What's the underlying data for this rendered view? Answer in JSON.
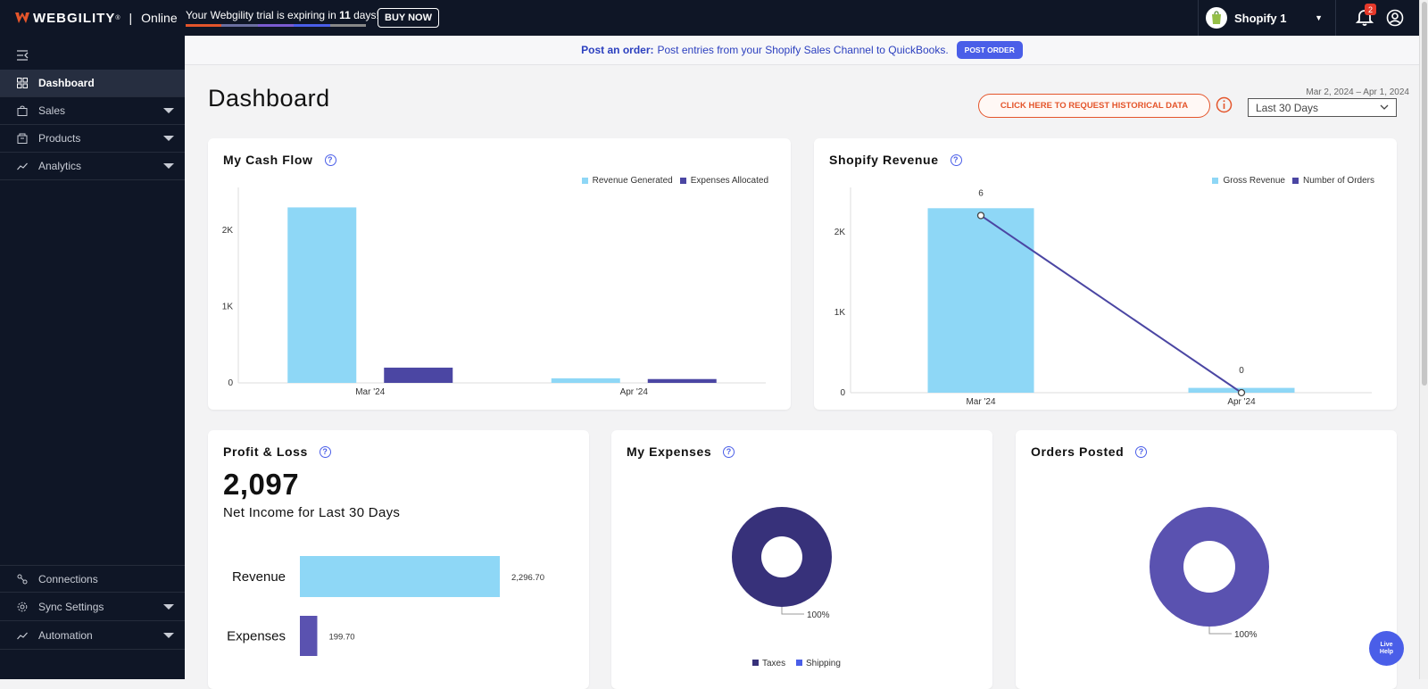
{
  "brand": {
    "name": "WEBGILITY",
    "reg": "®",
    "separator": "|",
    "edition": "Online"
  },
  "trial": {
    "text_pre": "Your Webgility trial is expiring in ",
    "days": "11",
    "text_post": " days!",
    "buy_label": "BUY NOW"
  },
  "store": {
    "name": "Shopify 1"
  },
  "notifications": {
    "count": "2"
  },
  "sidebar": {
    "items": [
      {
        "label": "Dashboard",
        "icon": "grid-icon",
        "active": true
      },
      {
        "label": "Sales",
        "icon": "bag-icon"
      },
      {
        "label": "Products",
        "icon": "box-icon"
      },
      {
        "label": "Analytics",
        "icon": "trend-icon"
      }
    ],
    "bottom": [
      {
        "label": "Connections",
        "icon": "connections-icon"
      },
      {
        "label": "Sync Settings",
        "icon": "gear-icon"
      },
      {
        "label": "Automation",
        "icon": "automation-icon"
      }
    ]
  },
  "banner": {
    "lead": "Post an order:",
    "text": "Post entries from your Shopify Sales Channel to QuickBooks.",
    "button": "POST ORDER"
  },
  "page": {
    "title": "Dashboard",
    "date_range": "Mar 2, 2024 – Apr 1, 2024",
    "historical_button": "CLICK HERE TO REQUEST HISTORICAL DATA",
    "range_select": "Last 30 Days"
  },
  "cards": {
    "cash_flow": {
      "title": "My Cash Flow",
      "help": "?"
    },
    "shopify_revenue": {
      "title": "Shopify Revenue",
      "help": "?"
    },
    "profit_loss": {
      "title": "Profit & Loss",
      "help": "?",
      "amount": "2,097",
      "subtitle": "Net Income for Last 30 Days"
    },
    "expenses": {
      "title": "My Expenses",
      "help": "?"
    },
    "orders_posted": {
      "title": "Orders Posted",
      "help": "?"
    }
  },
  "colors": {
    "light_blue": "#8ed7f6",
    "indigo": "#4b46a3",
    "dark_indigo": "#37317a",
    "purple": "#5a52b0",
    "accent_blue": "#4a5ee8",
    "orange": "#e4552b"
  },
  "chart_data": [
    {
      "type": "bar",
      "categories": [
        "Mar '24",
        "Apr '24"
      ],
      "series": [
        {
          "name": "Revenue Generated",
          "values": [
            2296.7,
            60
          ],
          "color": "#8ed7f6"
        },
        {
          "name": "Expenses Allocated",
          "values": [
            199.7,
            50
          ],
          "color": "#4b46a3"
        }
      ],
      "yticks": [
        "0",
        "1K",
        "2K"
      ],
      "ytick_values": [
        0,
        1000,
        2000
      ],
      "ylim": [
        0,
        2500
      ]
    },
    {
      "type": "bar",
      "categories": [
        "Mar '24",
        "Apr '24"
      ],
      "series": [
        {
          "name": "Gross Revenue",
          "values": [
            2296.7,
            60
          ],
          "color": "#8ed7f6"
        },
        {
          "name": "Number of Orders",
          "values": [
            6,
            0
          ],
          "color": "#4b46a3",
          "kind": "line",
          "labels": [
            "6",
            "0"
          ]
        }
      ],
      "yticks": [
        "0",
        "1K",
        "2K"
      ],
      "ytick_values": [
        0,
        1000,
        2000
      ],
      "ylim": [
        0,
        2500
      ],
      "orders_ylim": [
        0,
        6.8
      ]
    },
    {
      "type": "bar",
      "orientation": "horizontal",
      "categories": [
        "Revenue",
        "Expenses"
      ],
      "values": [
        2296.7,
        199.7
      ],
      "labels": [
        "2,296.70",
        "199.70"
      ],
      "colors": [
        "#8ed7f6",
        "#5a52b0"
      ]
    },
    {
      "type": "pie",
      "variant": "donut",
      "slices": [
        {
          "name": "Taxes",
          "value": 100,
          "color": "#37317a"
        },
        {
          "name": "Shipping",
          "value": 0,
          "color": "#4a5ee8"
        }
      ],
      "label": "100%",
      "legend": [
        "Taxes",
        "Shipping"
      ]
    },
    {
      "type": "pie",
      "variant": "donut",
      "slices": [
        {
          "name": "",
          "value": 100,
          "color": "#5a52b0"
        }
      ],
      "label": "100%"
    }
  ],
  "live_help": {
    "line1": "Live",
    "line2": "Help"
  }
}
